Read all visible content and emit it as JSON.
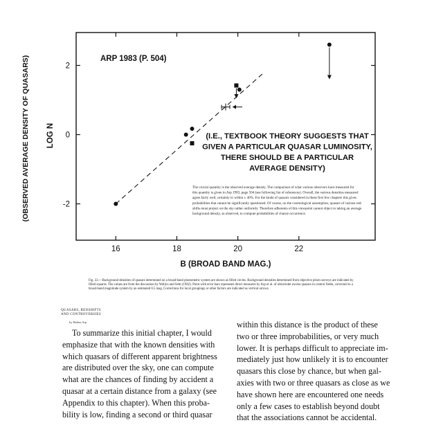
{
  "chart_data": {
    "type": "scatter",
    "title": "ARP 1983 (P. 504)",
    "xlabel": "B (BROAD BAND MAG.)",
    "ylabel": "LOG N",
    "ylabel_outer": "(OBSERVED AVERAGE DENSITY OF QUASARS)",
    "xlim": [
      14.7,
      24.5
    ],
    "ylim": [
      -3.05,
      2.95
    ],
    "xticks": [
      16,
      18,
      20,
      22
    ],
    "yticks": [
      -2,
      0,
      2
    ],
    "tick_labels_x": [
      "16",
      "18",
      "20",
      "22"
    ],
    "tick_labels_y": [
      "-2",
      "0",
      "2"
    ],
    "grid": false,
    "series": [
      {
        "marker": "circle",
        "x": [
          16.0,
          18.3,
          18.5,
          20.05,
          23.0
        ],
        "y": [
          -2.0,
          0.0,
          0.17,
          1.3,
          2.6
        ]
      },
      {
        "marker": "square",
        "x": [
          18.5,
          19.95
        ],
        "y": [
          -0.25,
          1.42
        ]
      },
      {
        "marker": "cross",
        "x": [
          19.6
        ],
        "y": [
          0.8
        ]
      }
    ],
    "trend_line": {
      "x": [
        16.0,
        20.8
      ],
      "y": [
        -2.0,
        1.75
      ]
    },
    "annotation": [
      "(I.E., TEXTBOOK THEORY SUGGESTS THAT",
      "GIVEN A PARTICULAR QUASAR LUMINOSITY,",
      "THERE SHOULD BE A PARTICULAR",
      "AVERAGE DENSITY)"
    ],
    "inset_text": [
      "The crucial quantity is the observed average density. The comparison of what various observers have measured for",
      "this quantity is given in Arp 1983, page 504 (see following list of references). Overall, the various densities measured",
      "agree fairly well, certainly to within ± 40%.   For the kinds of quasars considered in these first few chapters this gives",
      "probabilities that cannot be significantly questioned. Of course, on the cosmological assumption, quasars of various red-",
      "shifts must project on the sky rather uniformly. Therefore adherents of this viewpoint cannot object to taking an average",
      "background density, as observed, to compute probabilities of chance occurrence."
    ]
  },
  "caption": "Fig. 22.—Background densities of quasars determined on a broad-band photometric system are shown as filled circles. Background densities determined from objective prism surveys are indicated by filled squares. The values are from the discussion by Wallyn and Setti (1982). Point with error bars represents direct measures by Arp et al. of ultraviolet excess quasars in control fields, corrected to a broad-band magnitude system by an estimated 0.5 mag. Corrections for local groupings or other factors are indicated as vertical arrows.",
  "running_head": "QUASARS, REDSHIFTS AND CONTROVERSIES",
  "byline": "by Halton Arp",
  "body_left": [
    "To summarize this initial chapter, I would",
    "emphasize that with the known densities with",
    "which quasars of different apparent brightness",
    "are distributed over the sky, one can compute",
    "what are the chances of finding by accident a",
    "quasar at a certain distance from a galaxy (see",
    "Appendix to this chapter). When this proba-",
    "bility is low, finding a second or third quasar"
  ],
  "body_right": [
    "within this distance is the product of these",
    "two or three improbabilities, or very much",
    "lower. It is perhaps difficult to appreciate im-",
    "mediately just how unlikely it is to encounter",
    "quasars this close by chance, but when gal-",
    "axies with two or three quasars as close as we",
    "have shown here are encountered one needs",
    "only a few cases to establish beyond doubt",
    "that the associations cannot be accidental."
  ]
}
